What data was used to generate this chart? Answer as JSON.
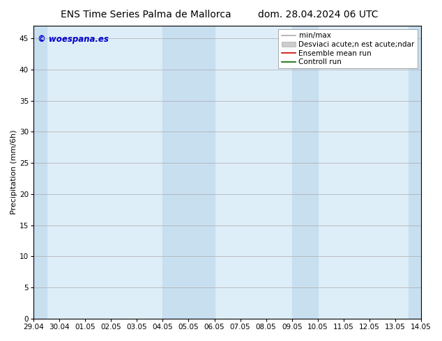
{
  "title_left": "ENS Time Series Palma de Mallorca",
  "title_right": "dom. 28.04.2024 06 UTC",
  "ylabel": "Precipitation (mm/6h)",
  "ylim": [
    0,
    47
  ],
  "yticks": [
    0,
    5,
    10,
    15,
    20,
    25,
    30,
    35,
    40,
    45
  ],
  "xtick_labels": [
    "29.04",
    "30.04",
    "01.05",
    "02.05",
    "03.05",
    "04.05",
    "05.05",
    "06.05",
    "07.05",
    "08.05",
    "09.05",
    "10.05",
    "11.05",
    "12.05",
    "13.05",
    "14.05"
  ],
  "bg_color": "#ffffff",
  "plot_bg_color": "#deeef8",
  "band_color": "#c8dff0",
  "band_ranges_idx": [
    [
      0.0,
      0.5
    ],
    [
      5.0,
      7.0
    ],
    [
      10.0,
      11.0
    ],
    [
      14.5,
      15.0
    ]
  ],
  "watermark": "© woespana.es",
  "watermark_color": "#0000cc",
  "legend_label_minmax": "min/max",
  "legend_label_std": "Desviaci acute;n est acute;ndar",
  "legend_label_ens": "Ensemble mean run",
  "legend_label_ctrl": "Controll run",
  "legend_color_minmax": "#aaaaaa",
  "legend_color_std": "#cccccc",
  "legend_color_ens": "#cc0000",
  "legend_color_ctrl": "#006600",
  "title_fontsize": 10,
  "axis_fontsize": 8,
  "tick_fontsize": 7.5,
  "legend_fontsize": 7.5
}
